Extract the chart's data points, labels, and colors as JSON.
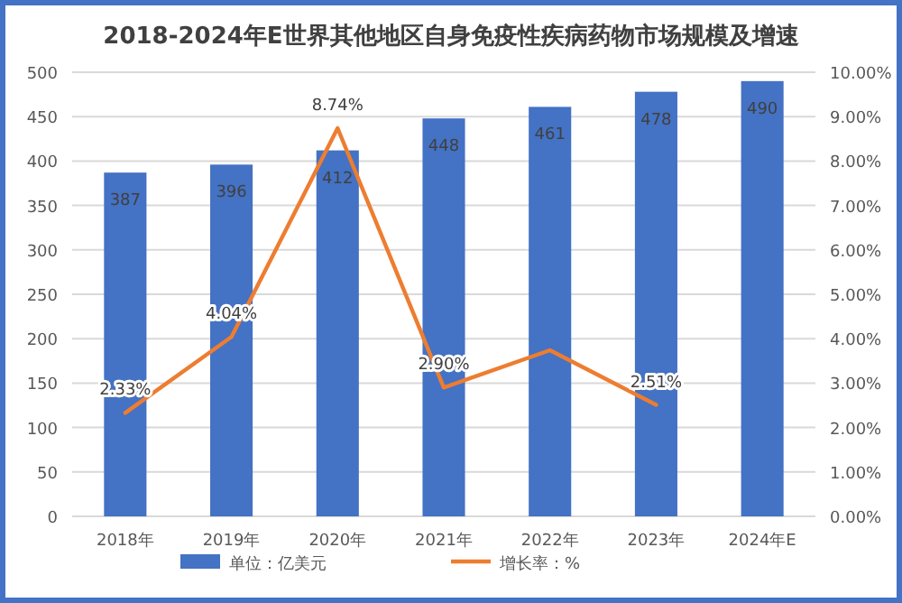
{
  "chart_data": {
    "type": "bar",
    "title": "2018-2024年E世界其他地区自身免疫性疾病药物市场规模及增速",
    "categories": [
      "2018年",
      "2019年",
      "2020年",
      "2021年",
      "2022年",
      "2023年",
      "2024年E"
    ],
    "series": [
      {
        "name": "单位：亿美元",
        "color": "#4472c4",
        "values": [
          387,
          396,
          412,
          448,
          461,
          478,
          490
        ],
        "value_labels": [
          "387",
          "396",
          "412",
          "448",
          "461",
          "478",
          "490"
        ]
      },
      {
        "name": "增长率：%",
        "type": "line",
        "axis": "y2",
        "color": "#ed7d31",
        "values": [
          2.33,
          4.04,
          8.74,
          2.9,
          3.74,
          2.51,
          null
        ],
        "value_labels": [
          "2.33%",
          "4.04%",
          "8.74%",
          "2.90%",
          null,
          "2.51%",
          null
        ]
      }
    ],
    "ylim": [
      0,
      500
    ],
    "yticks": [
      0,
      50,
      100,
      150,
      200,
      250,
      300,
      350,
      400,
      450,
      500
    ],
    "y2lim": [
      0,
      10
    ],
    "y2ticks": [
      {
        "value": 0,
        "label": "0.00%"
      },
      {
        "value": 1,
        "label": "1.00%"
      },
      {
        "value": 2,
        "label": "2.00%"
      },
      {
        "value": 3,
        "label": "3.00%"
      },
      {
        "value": 4,
        "label": "4.00%"
      },
      {
        "value": 5,
        "label": "5.00%"
      },
      {
        "value": 6,
        "label": "6.00%"
      },
      {
        "value": 7,
        "label": "7.00%"
      },
      {
        "value": 8,
        "label": "8.00%"
      },
      {
        "value": 9,
        "label": "9.00%"
      },
      {
        "value": 10,
        "label": "10.00%"
      }
    ],
    "grid": "y",
    "legend": "bottom",
    "marker": "none"
  }
}
